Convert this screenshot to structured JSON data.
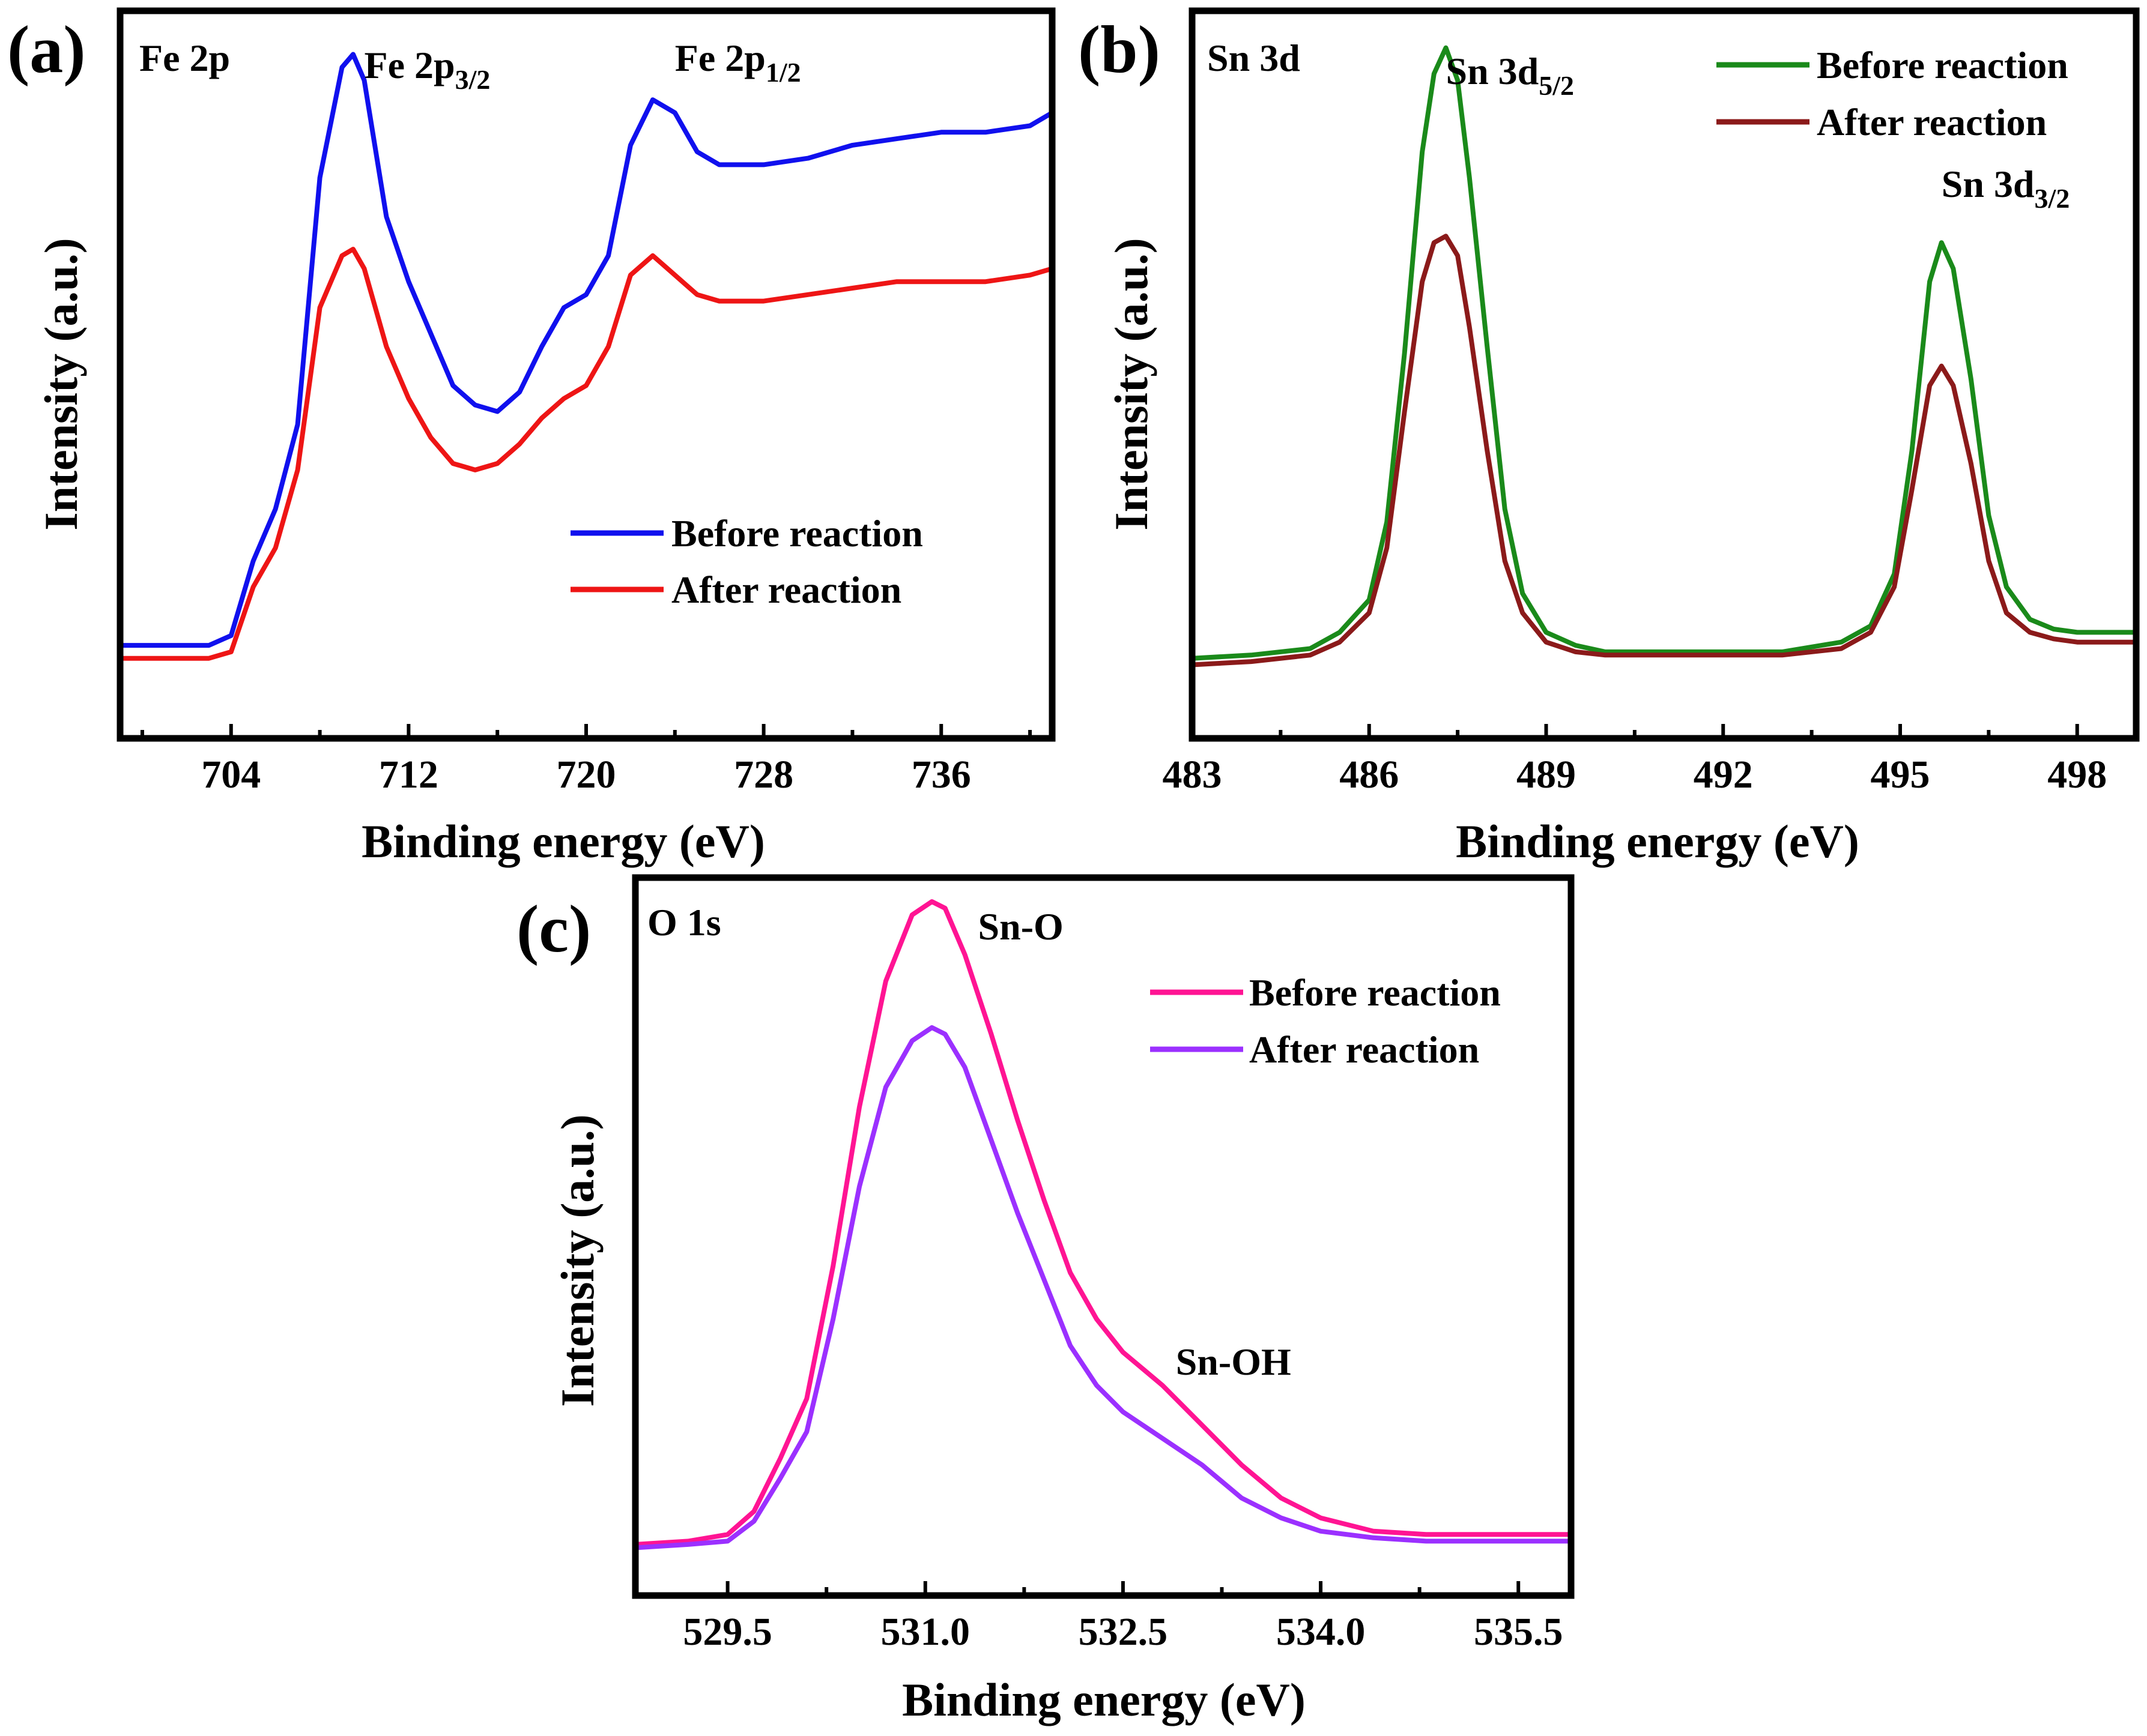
{
  "panels": [
    {
      "letter": "(a)",
      "chart_data": {
        "type": "line",
        "title": "Fe 2p",
        "xlabel": "Binding energy (eV)",
        "ylabel": "Intensity (a.u.)",
        "xlim": [
          699,
          741
        ],
        "ylim": [
          0,
          1
        ],
        "xticks": [
          704,
          712,
          720,
          728,
          736
        ],
        "xtick_labels": [
          "704",
          "712",
          "720",
          "728",
          "736"
        ],
        "minor_xticks": [
          700,
          708,
          716,
          724,
          732,
          740
        ],
        "grid": false,
        "legend_position": "right",
        "annotations": [
          {
            "name": "fe-2p3-2",
            "base": "Fe 2p",
            "sub": "3/2",
            "x": 710
          },
          {
            "name": "fe-2p1-2",
            "base": "Fe 2p",
            "sub": "1/2",
            "x": 724
          }
        ],
        "series": [
          {
            "name": "Before reaction",
            "color": "#1010ee",
            "x": [
              699,
              703,
              704,
              705,
              706,
              707,
              708,
              709,
              709.5,
              710,
              711,
              712,
              713,
              714,
              715,
              716,
              717,
              718,
              719,
              720,
              721,
              722,
              723,
              724,
              725,
              726,
              727,
              728,
              730,
              732,
              734,
              736,
              738,
              740,
              741
            ],
            "y": [
              0.06,
              0.06,
              0.075,
              0.19,
              0.27,
              0.4,
              0.78,
              0.95,
              0.97,
              0.93,
              0.72,
              0.62,
              0.54,
              0.46,
              0.43,
              0.42,
              0.45,
              0.52,
              0.58,
              0.6,
              0.66,
              0.83,
              0.9,
              0.88,
              0.82,
              0.8,
              0.8,
              0.8,
              0.81,
              0.83,
              0.84,
              0.85,
              0.85,
              0.86,
              0.88
            ]
          },
          {
            "name": "After reaction",
            "color": "#ee1515",
            "x": [
              699,
              703,
              704,
              705,
              706,
              707,
              708,
              709,
              709.5,
              710,
              711,
              712,
              713,
              714,
              715,
              716,
              717,
              718,
              719,
              720,
              721,
              722,
              723,
              724,
              725,
              726,
              727,
              728,
              730,
              732,
              734,
              736,
              738,
              740,
              741
            ],
            "y": [
              0.04,
              0.04,
              0.05,
              0.15,
              0.21,
              0.33,
              0.58,
              0.66,
              0.67,
              0.64,
              0.52,
              0.44,
              0.38,
              0.34,
              0.33,
              0.34,
              0.37,
              0.41,
              0.44,
              0.46,
              0.52,
              0.63,
              0.66,
              0.63,
              0.6,
              0.59,
              0.59,
              0.59,
              0.6,
              0.61,
              0.62,
              0.62,
              0.62,
              0.63,
              0.64
            ]
          }
        ]
      }
    },
    {
      "letter": "(b)",
      "chart_data": {
        "type": "line",
        "title": "Sn 3d",
        "xlabel": "Binding energy (eV)",
        "ylabel": "Intensity (a.u.)",
        "xlim": [
          483,
          499
        ],
        "ylim": [
          0,
          1
        ],
        "xticks": [
          483,
          486,
          489,
          492,
          495,
          498
        ],
        "xtick_labels": [
          "483",
          "486",
          "489",
          "492",
          "495",
          "498"
        ],
        "minor_xticks": [
          484.5,
          487.5,
          490.5,
          493.5,
          496.5
        ],
        "grid": false,
        "legend_position": "top-right",
        "annotations": [
          {
            "name": "sn-3d5-2",
            "base": "Sn 3d",
            "sub": "5/2",
            "x": 487.3
          },
          {
            "name": "sn-3d3-2",
            "base": "Sn 3d",
            "sub": "3/2",
            "x": 495.7
          }
        ],
        "series": [
          {
            "name": "Before reaction",
            "color": "#1a8a1a",
            "x": [
              483,
              484,
              485,
              485.5,
              486,
              486.3,
              486.6,
              486.9,
              487.1,
              487.3,
              487.5,
              487.7,
              488,
              488.3,
              488.6,
              489,
              489.5,
              490,
              491,
              492,
              493,
              494,
              494.5,
              494.9,
              495.2,
              495.5,
              495.7,
              495.9,
              496.2,
              496.5,
              496.8,
              497.2,
              497.6,
              498,
              499
            ],
            "y": [
              0.04,
              0.045,
              0.055,
              0.08,
              0.13,
              0.25,
              0.51,
              0.82,
              0.94,
              0.98,
              0.93,
              0.78,
              0.52,
              0.27,
              0.14,
              0.08,
              0.06,
              0.05,
              0.05,
              0.05,
              0.05,
              0.065,
              0.09,
              0.17,
              0.36,
              0.62,
              0.68,
              0.64,
              0.47,
              0.26,
              0.15,
              0.1,
              0.085,
              0.08,
              0.08
            ]
          },
          {
            "name": "After reaction",
            "color": "#8b1a1a",
            "x": [
              483,
              484,
              485,
              485.5,
              486,
              486.3,
              486.6,
              486.9,
              487.1,
              487.3,
              487.5,
              487.7,
              488,
              488.3,
              488.6,
              489,
              489.5,
              490,
              491,
              492,
              493,
              494,
              494.5,
              494.9,
              495.2,
              495.5,
              495.7,
              495.9,
              496.2,
              496.5,
              496.8,
              497.2,
              497.6,
              498,
              499
            ],
            "y": [
              0.03,
              0.035,
              0.045,
              0.065,
              0.11,
              0.21,
              0.42,
              0.62,
              0.68,
              0.69,
              0.66,
              0.55,
              0.36,
              0.19,
              0.11,
              0.065,
              0.05,
              0.045,
              0.045,
              0.045,
              0.045,
              0.055,
              0.08,
              0.15,
              0.3,
              0.46,
              0.49,
              0.46,
              0.34,
              0.19,
              0.11,
              0.08,
              0.07,
              0.065,
              0.065
            ]
          }
        ]
      }
    },
    {
      "letter": "(c)",
      "chart_data": {
        "type": "line",
        "title": "O 1s",
        "xlabel": "Binding energy (eV)",
        "ylabel": "Intensity (a.u.)",
        "xlim": [
          528.8,
          535.9
        ],
        "ylim": [
          0,
          1
        ],
        "xticks": [
          529.5,
          531.0,
          532.5,
          534.0,
          535.5
        ],
        "xtick_labels": [
          "529.5",
          "531.0",
          "532.5",
          "534.0",
          "535.5"
        ],
        "minor_xticks": [
          530.25,
          531.75,
          533.25,
          534.75
        ],
        "grid": false,
        "legend_position": "top-right",
        "annotations": [
          {
            "name": "sn-o",
            "base": "Sn-O",
            "sub": "",
            "x": 531.4
          },
          {
            "name": "sn-oh",
            "base": "Sn-OH",
            "sub": "",
            "x": 532.9
          }
        ],
        "series": [
          {
            "name": "Before reaction",
            "color": "#ff1493",
            "x": [
              528.8,
              529.2,
              529.5,
              529.7,
              529.9,
              530.1,
              530.3,
              530.5,
              530.7,
              530.9,
              531.05,
              531.15,
              531.3,
              531.5,
              531.7,
              531.9,
              532.1,
              532.3,
              532.5,
              532.8,
              533.1,
              533.4,
              533.7,
              534.0,
              534.4,
              534.8,
              535.2,
              535.9
            ],
            "y": [
              0.03,
              0.035,
              0.045,
              0.08,
              0.16,
              0.25,
              0.45,
              0.69,
              0.88,
              0.98,
              1.0,
              0.99,
              0.92,
              0.8,
              0.67,
              0.55,
              0.44,
              0.37,
              0.32,
              0.27,
              0.21,
              0.15,
              0.1,
              0.07,
              0.05,
              0.045,
              0.045,
              0.045
            ]
          },
          {
            "name": "After reaction",
            "color": "#9b30ff",
            "x": [
              528.8,
              529.2,
              529.5,
              529.7,
              529.9,
              530.1,
              530.3,
              530.5,
              530.7,
              530.9,
              531.05,
              531.15,
              531.3,
              531.5,
              531.7,
              531.9,
              532.1,
              532.3,
              532.5,
              532.8,
              533.1,
              533.4,
              533.7,
              534.0,
              534.4,
              534.8,
              535.2,
              535.9
            ],
            "y": [
              0.025,
              0.03,
              0.035,
              0.065,
              0.13,
              0.2,
              0.37,
              0.57,
              0.72,
              0.79,
              0.81,
              0.8,
              0.75,
              0.64,
              0.53,
              0.43,
              0.33,
              0.27,
              0.23,
              0.19,
              0.15,
              0.1,
              0.07,
              0.05,
              0.04,
              0.035,
              0.035,
              0.035
            ]
          }
        ]
      }
    }
  ]
}
